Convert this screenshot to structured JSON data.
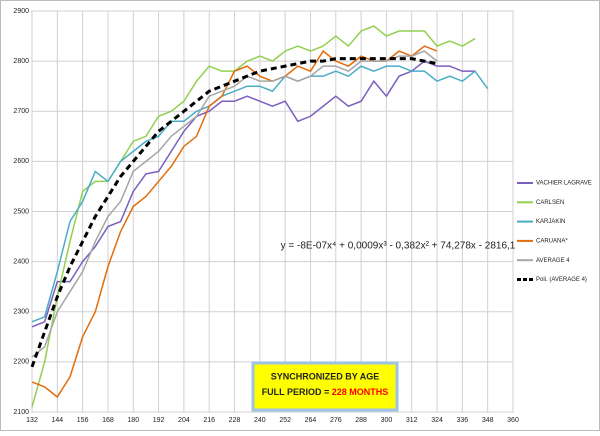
{
  "chart_data": {
    "type": "line",
    "x": [
      132,
      138,
      144,
      150,
      156,
      162,
      168,
      174,
      180,
      186,
      192,
      198,
      204,
      210,
      216,
      222,
      228,
      234,
      240,
      246,
      252,
      258,
      264,
      270,
      276,
      282,
      288,
      294,
      300,
      306,
      312,
      318,
      324,
      330,
      336,
      342,
      348
    ],
    "series": [
      {
        "name": "VACHIER LAGRAVE",
        "color": "#7b5fbf",
        "values": [
          2270,
          2280,
          2360,
          2360,
          2400,
          2430,
          2470,
          2480,
          2540,
          2575,
          2580,
          2620,
          2660,
          2690,
          2700,
          2720,
          2720,
          2730,
          2720,
          2710,
          2720,
          2680,
          2690,
          2710,
          2730,
          2710,
          2720,
          2760,
          2730,
          2770,
          2780,
          2800,
          2790,
          2790,
          2780,
          2780,
          null
        ]
      },
      {
        "name": "CARLSEN",
        "color": "#92d050",
        "values": [
          2110,
          2200,
          2330,
          2440,
          2540,
          2560,
          2560,
          2600,
          2640,
          2650,
          2690,
          2700,
          2720,
          2760,
          2790,
          2780,
          2780,
          2800,
          2810,
          2800,
          2820,
          2830,
          2820,
          2830,
          2850,
          2830,
          2860,
          2870,
          2850,
          2860,
          2860,
          2860,
          2830,
          2840,
          2830,
          2845,
          null
        ]
      },
      {
        "name": "KARJAKIN",
        "color": "#4bacc6",
        "values": [
          2280,
          2290,
          2380,
          2480,
          2520,
          2580,
          2560,
          2600,
          2620,
          2640,
          2650,
          2680,
          2680,
          2700,
          2710,
          2730,
          2740,
          2750,
          2750,
          2740,
          2770,
          2760,
          2770,
          2770,
          2780,
          2770,
          2790,
          2780,
          2790,
          2790,
          2780,
          2780,
          2760,
          2770,
          2760,
          2780,
          2745
        ]
      },
      {
        "name": "CARUANA*",
        "color": "#e46c0a",
        "values": [
          2160,
          2150,
          2130,
          2170,
          2250,
          2300,
          2390,
          2460,
          2510,
          2530,
          2560,
          2590,
          2630,
          2650,
          2710,
          2730,
          2780,
          2790,
          2770,
          2760,
          2770,
          2790,
          2780,
          2820,
          2800,
          2790,
          2810,
          2800,
          2800,
          2820,
          2810,
          2830,
          2820,
          null,
          null,
          null,
          null
        ]
      },
      {
        "name": "AVERAGE 4",
        "color": "#a6a6a6",
        "values": [
          2210,
          2230,
          2300,
          2340,
          2380,
          2440,
          2490,
          2520,
          2580,
          2600,
          2620,
          2650,
          2670,
          2690,
          2730,
          2740,
          2750,
          2770,
          2760,
          2760,
          2770,
          2760,
          2770,
          2790,
          2790,
          2780,
          2800,
          2800,
          2800,
          2810,
          2810,
          2820,
          2800,
          null,
          null,
          null,
          null
        ]
      },
      {
        "name": "Poli. (AVERAGE 4)",
        "color": "#000000",
        "line_style": "dashed",
        "values": [
          2190,
          2260,
          2330,
          2390,
          2440,
          2490,
          2530,
          2570,
          2600,
          2630,
          2660,
          2680,
          2700,
          2720,
          2740,
          2750,
          2760,
          2770,
          2780,
          2785,
          2790,
          2795,
          2800,
          2800,
          2805,
          2805,
          2805,
          2805,
          2805,
          2805,
          2805,
          2800,
          2795,
          null,
          null,
          null,
          null
        ]
      }
    ],
    "xlim": [
      132,
      360
    ],
    "xticks": [
      132,
      144,
      156,
      168,
      180,
      192,
      204,
      216,
      228,
      240,
      252,
      264,
      276,
      288,
      300,
      312,
      324,
      336,
      348,
      360
    ],
    "ylim": [
      2100,
      2900
    ],
    "yticks": [
      2100,
      2200,
      2300,
      2400,
      2500,
      2600,
      2700,
      2800,
      2900
    ],
    "grid": true,
    "legend": "right",
    "equation": "y = -8E-07x⁴ + 0,0009x³ - 0,382x² + 74,278x - 2816,1",
    "box": {
      "line1": "SYNCHRONIZED BY AGE",
      "line2": "FULL PERIOD = ",
      "highlight": "228 MONTHS"
    }
  }
}
